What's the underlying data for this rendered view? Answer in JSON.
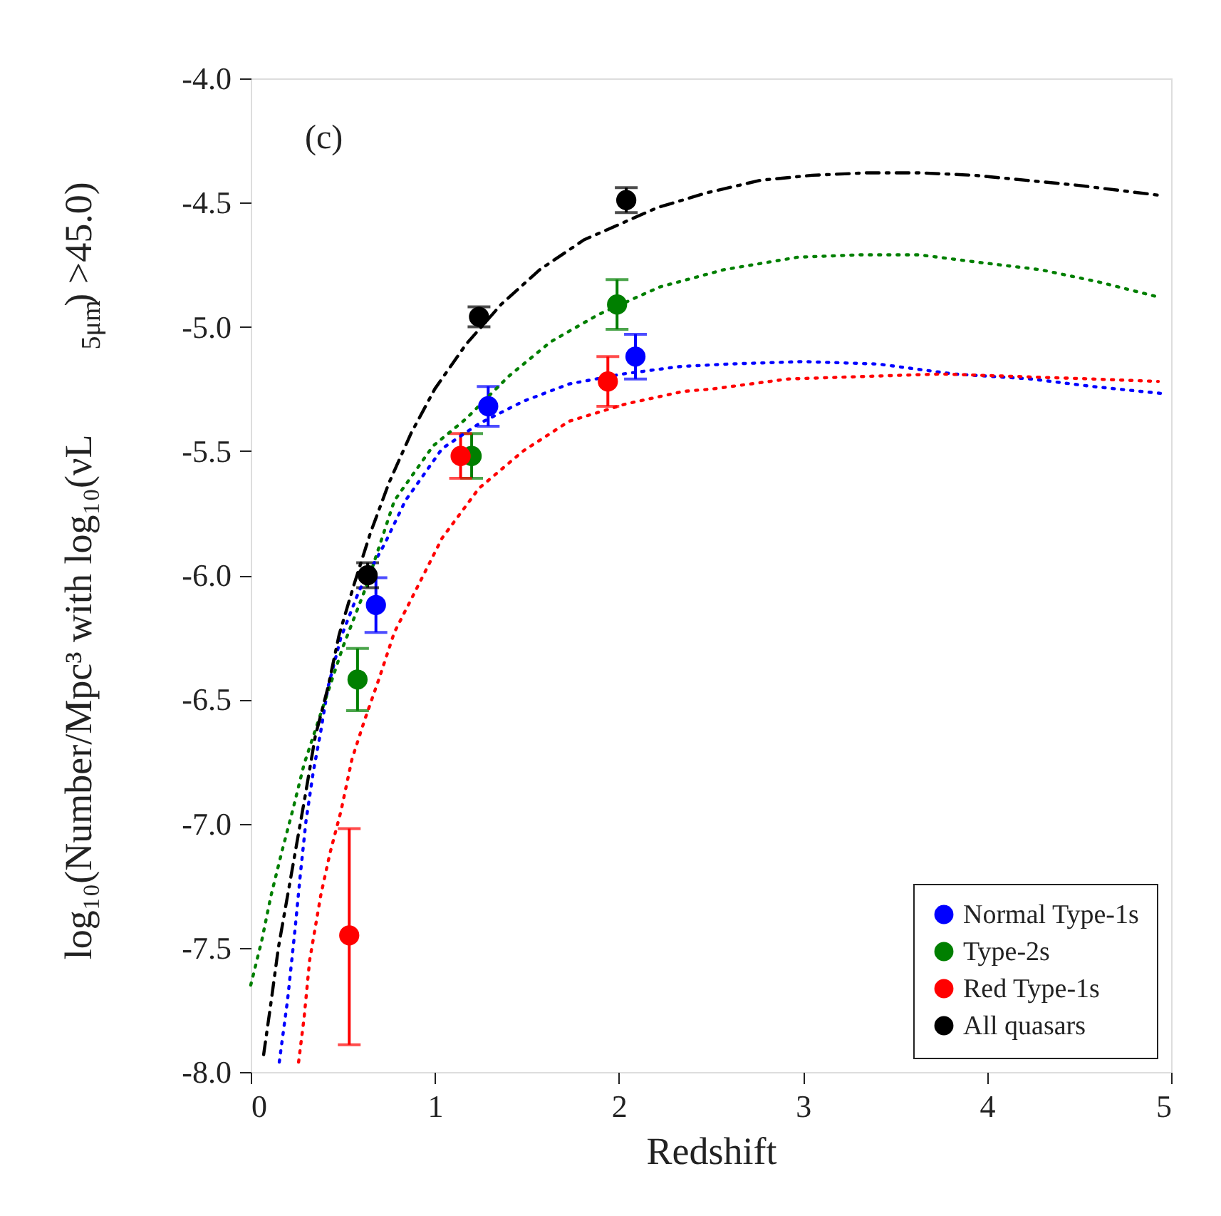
{
  "chart_data": {
    "type": "scatter",
    "xlabel": "Redshift",
    "ylabel": "log₁₀(Number/Mpc³  with log₁₀(νL$_{5μm}$) >45.0)",
    "annotations": [
      "(c)"
    ],
    "xlim": [
      0,
      5
    ],
    "xticks": [
      0,
      1,
      2,
      3,
      4,
      5
    ],
    "ylim": [
      -8,
      -4
    ],
    "yticks": [
      {
        "value": -8,
        "label": "-8.0"
      },
      {
        "value": -7.5,
        "label": "-7.5"
      },
      {
        "value": -7,
        "label": "-7.0"
      },
      {
        "value": -6.5,
        "label": "-6.5"
      },
      {
        "value": -6,
        "label": "-6.0"
      },
      {
        "value": -5.5,
        "label": "-5.5"
      },
      {
        "value": -5,
        "label": "-5.0"
      },
      {
        "value": -4.5,
        "label": "-4.5"
      },
      {
        "value": -4,
        "label": "-4.0"
      }
    ],
    "grid": false,
    "legend": "bottom right",
    "marker": "circle",
    "series": [
      {
        "name": "Normal Type-1s",
        "type": "scatter",
        "color": "#0000ff",
        "x": [
          0.68,
          1.29,
          2.09
        ],
        "values": [
          -6.12,
          -5.32,
          -5.12
        ],
        "errors": [
          0.11,
          0.08,
          0.09
        ]
      },
      {
        "name": "Type-2s",
        "type": "scatter",
        "color": "#007f00",
        "x": [
          0.58,
          1.2,
          1.99
        ],
        "values": [
          -6.42,
          -5.52,
          -4.91
        ],
        "errors": [
          0.125,
          0.09,
          0.1
        ]
      },
      {
        "name": "Red Type-1s",
        "type": "scatter",
        "color": "#ff0000",
        "x": [
          0.535,
          1.14,
          1.94
        ],
        "values": [
          -7.45,
          -5.52,
          -5.22
        ],
        "errors": [
          [
            -7.89,
            -7.02
          ],
          0.09,
          0.1
        ]
      },
      {
        "name": "All quasars",
        "type": "scatter",
        "color": "#000000",
        "x": [
          0.635,
          1.24,
          2.04
        ],
        "values": [
          -6.0,
          -4.96,
          -4.49
        ],
        "errors": [
          0.05,
          0.04,
          0.05
        ]
      },
      {
        "type": "line",
        "marker": "none",
        "line_style": "dotted",
        "color": "#0000ff",
        "x": [
          0.155,
          0.2,
          0.24,
          0.27,
          0.3,
          0.34,
          0.38,
          0.42,
          0.49,
          0.59,
          0.73,
          0.84,
          1.04,
          1.24,
          1.48,
          1.73,
          2.02,
          2.33,
          2.59,
          3.0,
          3.41,
          3.82,
          4.24,
          4.57,
          4.97
        ],
        "values": [
          -7.96,
          -7.71,
          -7.43,
          -7.2,
          -6.99,
          -6.79,
          -6.63,
          -6.45,
          -6.25,
          -6.06,
          -5.87,
          -5.7,
          -5.49,
          -5.39,
          -5.3,
          -5.23,
          -5.19,
          -5.16,
          -5.15,
          -5.14,
          -5.15,
          -5.19,
          -5.21,
          -5.24,
          -5.27
        ]
      },
      {
        "type": "line",
        "marker": "none",
        "line_style": "dotted",
        "color": "#007f00",
        "x": [
          0,
          0.06,
          0.11,
          0.17,
          0.23,
          0.29,
          0.37,
          0.5,
          0.62,
          0.78,
          0.99,
          1.17,
          1.4,
          1.63,
          1.89,
          2.22,
          2.57,
          2.97,
          3.31,
          3.63,
          3.95,
          4.29,
          4.61,
          4.93
        ],
        "values": [
          -7.65,
          -7.47,
          -7.29,
          -7.11,
          -6.94,
          -6.76,
          -6.58,
          -6.29,
          -6.06,
          -5.7,
          -5.48,
          -5.37,
          -5.2,
          -5.06,
          -4.95,
          -4.84,
          -4.77,
          -4.72,
          -4.71,
          -4.71,
          -4.74,
          -4.77,
          -4.82,
          -4.88
        ]
      },
      {
        "type": "line",
        "marker": "none",
        "line_style": "dotted",
        "color": "#ff0000",
        "x": [
          0.26,
          0.29,
          0.32,
          0.38,
          0.43,
          0.49,
          0.55,
          0.62,
          0.7,
          0.78,
          0.89,
          1.04,
          1.24,
          1.48,
          1.73,
          2.04,
          2.35,
          2.51,
          2.92,
          3.33,
          3.75,
          4.16,
          4.57,
          4.93
        ],
        "values": [
          -7.96,
          -7.78,
          -7.55,
          -7.29,
          -7.12,
          -6.95,
          -6.74,
          -6.58,
          -6.41,
          -6.23,
          -6.07,
          -5.85,
          -5.65,
          -5.5,
          -5.38,
          -5.31,
          -5.26,
          -5.25,
          -5.21,
          -5.2,
          -5.19,
          -5.2,
          -5.21,
          -5.22
        ]
      },
      {
        "type": "line",
        "marker": "none",
        "line_style": "dashed",
        "color": "#000000",
        "x": [
          0.07,
          0.11,
          0.15,
          0.2,
          0.25,
          0.3,
          0.35,
          0.42,
          0.48,
          0.56,
          0.65,
          0.75,
          0.87,
          1.0,
          1.17,
          1.36,
          1.57,
          1.81,
          2.21,
          2.48,
          2.77,
          3.05,
          3.35,
          3.63,
          3.93,
          4.21,
          4.49,
          4.93
        ],
        "values": [
          -7.93,
          -7.72,
          -7.5,
          -7.29,
          -7.08,
          -6.87,
          -6.65,
          -6.45,
          -6.24,
          -6.04,
          -5.83,
          -5.63,
          -5.43,
          -5.25,
          -5.07,
          -4.91,
          -4.77,
          -4.65,
          -4.52,
          -4.46,
          -4.41,
          -4.39,
          -4.38,
          -4.38,
          -4.39,
          -4.41,
          -4.43,
          -4.47
        ]
      }
    ]
  }
}
